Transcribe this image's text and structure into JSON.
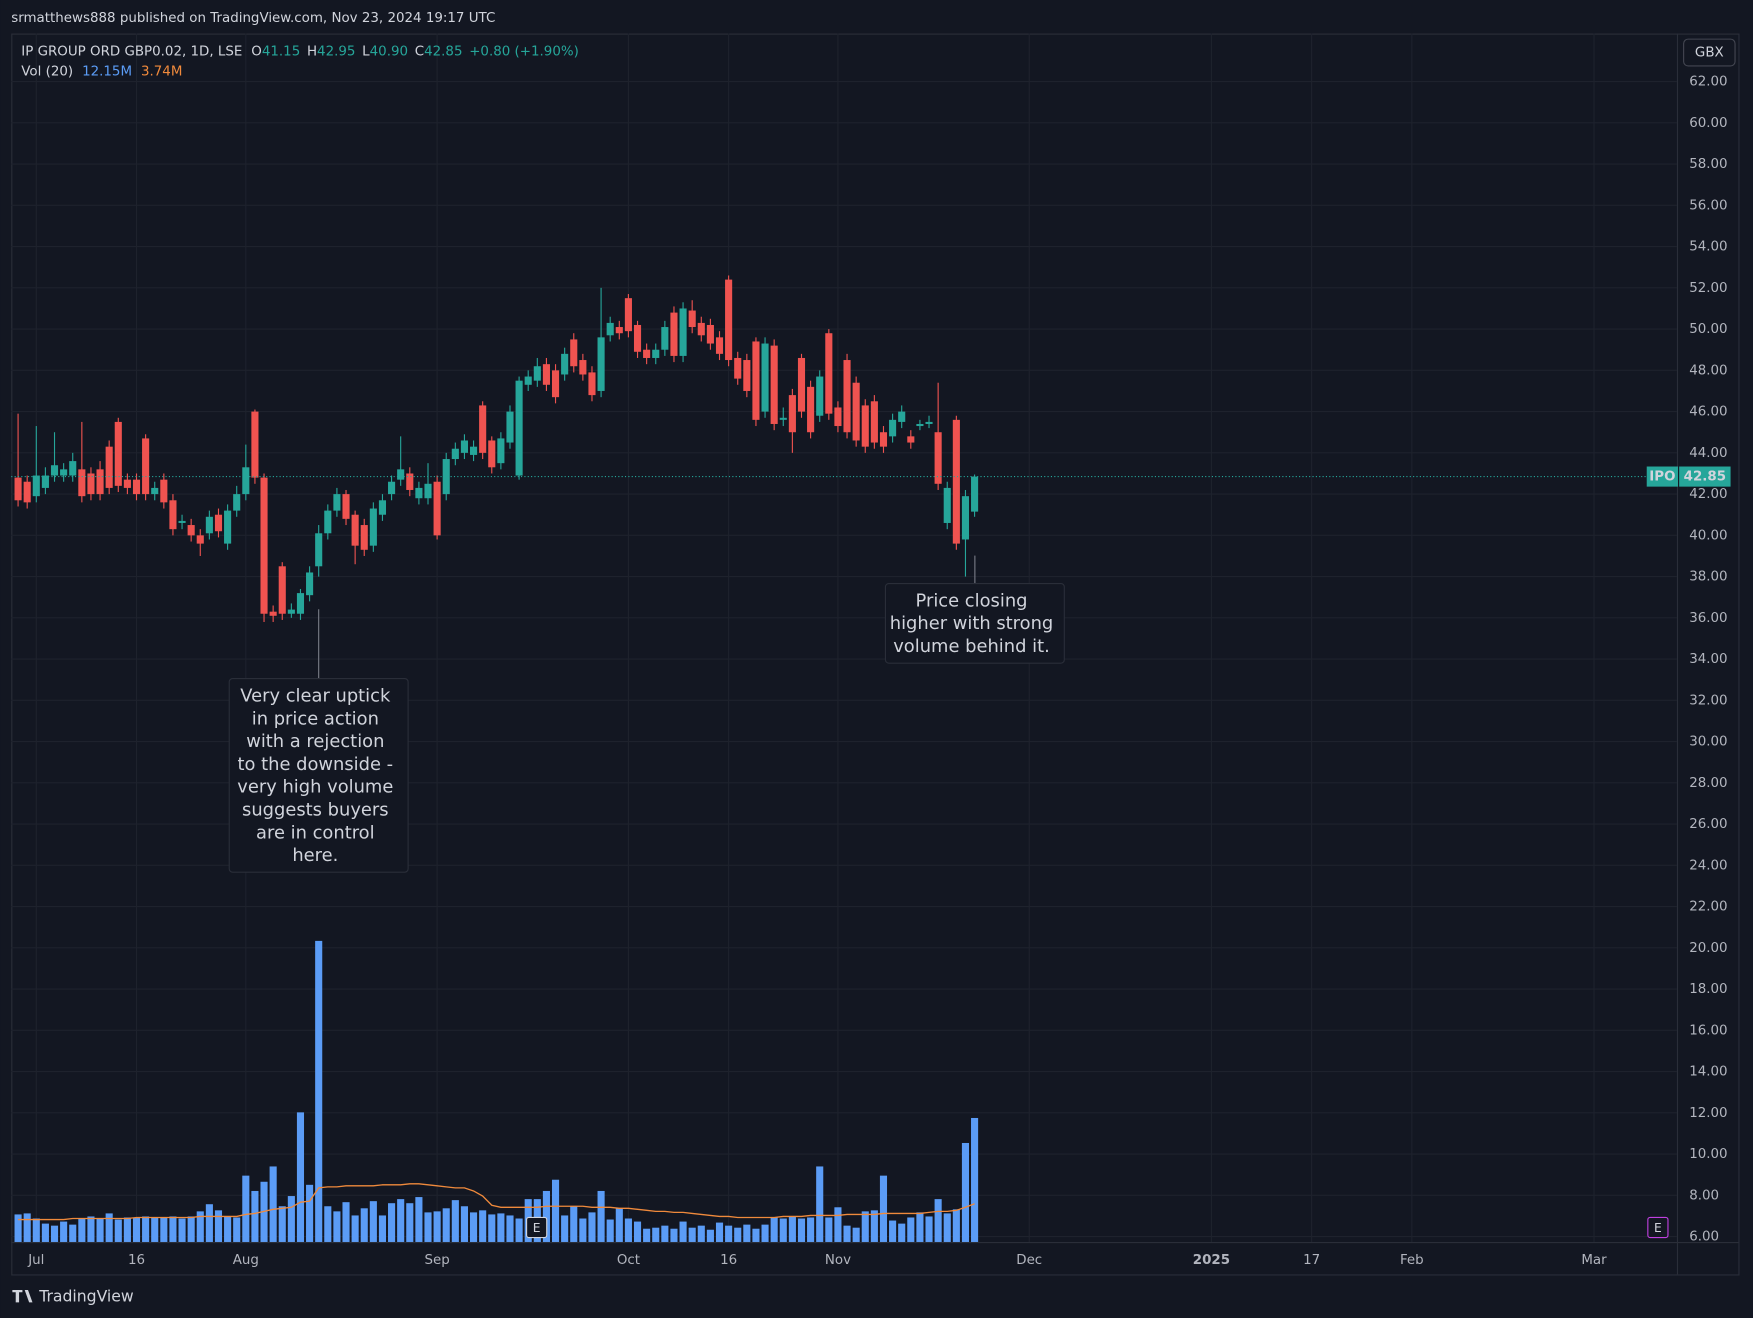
{
  "header": {
    "published": "srmatthews888 published on TradingView.com, Nov 23, 2024 19:17 UTC"
  },
  "chart_data": {
    "type": "candlestick",
    "title": "IP GROUP ORD GBP0.02, 1D, LSE",
    "legend": [
      {
        "key": "O",
        "value": "41.15"
      },
      {
        "key": "H",
        "value": "42.95"
      },
      {
        "key": "L",
        "value": "40.90"
      },
      {
        "key": "C",
        "value": "42.85"
      }
    ],
    "change": "+0.80 (+1.90%)",
    "x": [
      0,
      1,
      2,
      3,
      4,
      5,
      6,
      7,
      8,
      9,
      10,
      11,
      12,
      13,
      14,
      15,
      16,
      17,
      18,
      19,
      20,
      21,
      22,
      23,
      24,
      25,
      26,
      27,
      28,
      29,
      30,
      31,
      32,
      33,
      34,
      35,
      36,
      37,
      38,
      39,
      40,
      41,
      42,
      43,
      44,
      45,
      46,
      47,
      48,
      49,
      50,
      51,
      52,
      53,
      54,
      55,
      56,
      57,
      58,
      59,
      60,
      61,
      62,
      63,
      64,
      65,
      66,
      67,
      68,
      69,
      70,
      71,
      72,
      73,
      74,
      75,
      76,
      77,
      78,
      79,
      80,
      81,
      82,
      83,
      84,
      85,
      86,
      87,
      88,
      89,
      90,
      91,
      92,
      93,
      94,
      95,
      96,
      97,
      98,
      99,
      100,
      101,
      102,
      103,
      104,
      105
    ],
    "open": [
      42.8,
      42.6,
      41.9,
      42.3,
      42.9,
      42.9,
      42.9,
      43.2,
      43.0,
      43.2,
      44.3,
      45.5,
      42.7,
      42.7,
      44.7,
      42.0,
      42.7,
      41.7,
      40.6,
      40.5,
      40.0,
      40.1,
      41.0,
      39.6,
      41.2,
      42.0,
      46.0,
      42.8,
      36.3,
      38.5,
      36.2,
      36.2,
      37.1,
      38.5,
      40.1,
      41.2,
      42.0,
      41.0,
      40.5,
      39.5,
      41.0,
      42.0,
      42.7,
      43.0,
      41.8,
      41.8,
      42.6,
      42.0,
      43.7,
      44.0,
      43.9,
      46.3,
      44.6,
      43.5,
      44.5,
      42.9,
      47.3,
      47.5,
      48.3,
      48.0,
      47.8,
      49.5,
      48.5,
      47.9,
      47.0,
      49.7,
      50.1,
      51.5,
      50.2,
      49.0,
      48.6,
      49.0,
      50.8,
      48.7,
      50.9,
      50.3,
      50.2,
      49.6,
      52.4,
      48.6,
      48.5,
      49.4,
      46.0,
      49.2,
      45.6,
      46.8,
      48.6,
      47.2,
      45.8,
      49.8,
      46.2,
      48.5,
      47.4,
      46.3,
      46.5,
      45.0,
      44.8,
      45.5,
      44.8,
      45.3,
      45.4,
      45.0,
      40.6,
      45.6,
      39.8,
      41.15
    ],
    "high": [
      45.9,
      42.9,
      45.3,
      43.3,
      45.0,
      43.5,
      44.0,
      45.5,
      43.3,
      43.6,
      44.6,
      45.7,
      43.0,
      43.0,
      44.9,
      42.6,
      43.0,
      42.0,
      41.0,
      40.8,
      40.3,
      41.2,
      41.3,
      41.5,
      42.4,
      44.4,
      46.1,
      43.0,
      36.6,
      38.7,
      36.7,
      37.4,
      38.5,
      40.5,
      41.5,
      42.3,
      42.2,
      41.2,
      40.8,
      41.6,
      42.0,
      42.9,
      44.8,
      43.3,
      42.6,
      43.5,
      42.9,
      44.0,
      44.5,
      44.9,
      44.6,
      46.5,
      44.8,
      45.0,
      46.3,
      47.7,
      48.0,
      48.6,
      48.6,
      48.3,
      49.1,
      49.8,
      48.8,
      48.2,
      52.0,
      50.6,
      50.4,
      51.7,
      50.4,
      49.3,
      49.3,
      50.4,
      51.1,
      51.3,
      51.4,
      50.6,
      50.5,
      49.9,
      52.6,
      48.9,
      48.8,
      49.6,
      49.6,
      49.5,
      46.2,
      47.1,
      48.8,
      47.5,
      48.0,
      50.0,
      46.5,
      48.8,
      47.7,
      46.6,
      46.8,
      45.3,
      45.9,
      46.3,
      45.1,
      45.6,
      45.8,
      47.4,
      42.6,
      45.8,
      42.2,
      42.95
    ],
    "low": [
      41.4,
      41.3,
      41.6,
      42.0,
      42.6,
      42.6,
      42.6,
      41.6,
      41.7,
      41.7,
      42.0,
      42.1,
      42.0,
      41.7,
      41.7,
      41.7,
      41.3,
      40.0,
      40.3,
      39.7,
      39.0,
      39.8,
      39.9,
      39.3,
      40.9,
      41.7,
      42.5,
      35.8,
      35.8,
      35.9,
      36.0,
      35.9,
      36.8,
      38.0,
      39.8,
      40.9,
      40.5,
      38.6,
      39.0,
      39.2,
      40.7,
      41.7,
      42.4,
      41.9,
      41.5,
      41.5,
      39.8,
      41.7,
      43.4,
      43.7,
      43.6,
      43.7,
      43.0,
      43.2,
      44.2,
      42.7,
      47.0,
      47.2,
      47.0,
      46.4,
      47.5,
      47.9,
      47.5,
      46.5,
      46.7,
      49.4,
      49.5,
      49.6,
      48.6,
      48.3,
      48.3,
      48.7,
      48.4,
      48.4,
      49.8,
      49.4,
      49.0,
      48.5,
      48.2,
      47.3,
      46.7,
      45.3,
      45.7,
      45.1,
      45.3,
      44.0,
      45.7,
      44.7,
      45.5,
      45.6,
      45.0,
      44.7,
      44.3,
      44.0,
      44.2,
      44.0,
      44.5,
      45.2,
      44.2,
      45.1,
      45.2,
      42.2,
      40.3,
      39.3,
      38.0,
      40.9
    ],
    "close": [
      41.7,
      41.6,
      42.9,
      42.9,
      43.4,
      43.2,
      43.6,
      41.9,
      42.0,
      42.0,
      42.3,
      42.4,
      42.3,
      42.0,
      42.0,
      42.3,
      41.6,
      40.3,
      40.7,
      40.0,
      39.6,
      40.9,
      40.2,
      41.2,
      42.0,
      43.3,
      42.8,
      36.2,
      36.1,
      36.2,
      36.4,
      37.2,
      38.2,
      40.1,
      41.2,
      42.0,
      40.8,
      39.5,
      39.3,
      41.3,
      41.7,
      42.6,
      43.2,
      42.2,
      42.3,
      42.5,
      40.0,
      43.7,
      44.2,
      44.6,
      44.3,
      44.0,
      43.3,
      44.7,
      46.0,
      47.5,
      47.7,
      48.2,
      47.3,
      46.7,
      48.8,
      48.2,
      47.8,
      46.8,
      49.6,
      50.3,
      49.8,
      49.9,
      48.9,
      48.6,
      49.0,
      50.1,
      48.7,
      51.0,
      50.1,
      49.7,
      49.3,
      48.8,
      48.5,
      47.6,
      47.0,
      45.6,
      49.3,
      45.4,
      45.7,
      45.0,
      46.0,
      45.0,
      47.7,
      45.9,
      45.3,
      45.0,
      44.6,
      44.3,
      44.5,
      44.3,
      45.6,
      46.0,
      44.5,
      45.4,
      45.5,
      42.5,
      42.3,
      39.6,
      41.9,
      42.85
    ],
    "up_color": "#26a69a",
    "down_color": "#ef5350",
    "xlim": [
      -0.75,
      182.1
    ],
    "xticks": [
      {
        "value": 2,
        "label": "Jul"
      },
      {
        "value": 13,
        "label": "16"
      },
      {
        "value": 25,
        "label": "Aug"
      },
      {
        "value": 46,
        "label": "Sep"
      },
      {
        "value": 67,
        "label": "Oct"
      },
      {
        "value": 78,
        "label": "16"
      },
      {
        "value": 90,
        "label": "Nov"
      },
      {
        "value": 111,
        "label": "Dec"
      },
      {
        "value": 131,
        "label": "2025"
      },
      {
        "value": 142,
        "label": "17"
      },
      {
        "value": 153,
        "label": "Feb"
      },
      {
        "value": 173,
        "label": "Mar"
      }
    ],
    "ylim": [
      5.74,
      64.33
    ],
    "yticks": [
      {
        "value": 6,
        "label": "6.00"
      },
      {
        "value": 8,
        "label": "8.00"
      },
      {
        "value": 10,
        "label": "10.00"
      },
      {
        "value": 12,
        "label": "12.00"
      },
      {
        "value": 14,
        "label": "14.00"
      },
      {
        "value": 16,
        "label": "16.00"
      },
      {
        "value": 18,
        "label": "18.00"
      },
      {
        "value": 20,
        "label": "20.00"
      },
      {
        "value": 22,
        "label": "22.00"
      },
      {
        "value": 24,
        "label": "24.00"
      },
      {
        "value": 26,
        "label": "26.00"
      },
      {
        "value": 28,
        "label": "28.00"
      },
      {
        "value": 30,
        "label": "30.00"
      },
      {
        "value": 32,
        "label": "32.00"
      },
      {
        "value": 34,
        "label": "34.00"
      },
      {
        "value": 36,
        "label": "36.00"
      },
      {
        "value": 38,
        "label": "38.00"
      },
      {
        "value": 40,
        "label": "40.00"
      },
      {
        "value": 42,
        "label": "42.00"
      },
      {
        "value": 44,
        "label": "44.00"
      },
      {
        "value": 46,
        "label": "46.00"
      },
      {
        "value": 48,
        "label": "48.00"
      },
      {
        "value": 50,
        "label": "50.00"
      },
      {
        "value": 52,
        "label": "52.00"
      },
      {
        "value": 54,
        "label": "54.00"
      },
      {
        "value": 56,
        "label": "56.00"
      },
      {
        "value": 58,
        "label": "58.00"
      },
      {
        "value": 60,
        "label": "60.00"
      },
      {
        "value": 62,
        "label": "62.00"
      }
    ],
    "y_unit": "GBX",
    "y2lim": [
      0,
      118.4
    ],
    "grid": true,
    "series": [
      {
        "name": "Vol (20)",
        "type": "bar",
        "axis": "y2",
        "color": "#5b9cf6",
        "last_label": "12.15M",
        "values": [
          2.7,
          2.8,
          2.3,
          1.8,
          1.6,
          2.0,
          1.7,
          2.3,
          2.5,
          2.3,
          2.8,
          2.2,
          2.4,
          2.4,
          2.5,
          2.4,
          2.4,
          2.5,
          2.3,
          2.5,
          3.0,
          3.7,
          3.1,
          2.5,
          2.4,
          6.5,
          5.0,
          5.9,
          7.4,
          3.5,
          4.5,
          12.7,
          5.6,
          29.5,
          3.5,
          3.0,
          3.9,
          2.6,
          3.3,
          4.0,
          2.6,
          3.8,
          4.2,
          3.8,
          4.4,
          2.9,
          3.0,
          3.3,
          4.1,
          3.5,
          2.9,
          3.1,
          2.7,
          2.8,
          2.6,
          2.3,
          4.2,
          4.2,
          5.0,
          6.1,
          2.6,
          3.5,
          2.3,
          2.9,
          5.0,
          2.2,
          3.3,
          2.3,
          2.0,
          1.3,
          1.4,
          1.6,
          1.3,
          2.0,
          1.4,
          1.6,
          1.2,
          1.9,
          1.6,
          1.4,
          1.7,
          1.3,
          1.7,
          2.4,
          2.3,
          2.5,
          2.3,
          2.4,
          7.4,
          2.4,
          3.4,
          1.6,
          1.4,
          3.0,
          3.1,
          6.5,
          2.1,
          1.8,
          2.4,
          2.9,
          2.5,
          4.2,
          2.8,
          3.2,
          9.7,
          12.15
        ]
      },
      {
        "type": "line",
        "axis": "y2",
        "color": "#f08a3c",
        "last_label": "3.74M",
        "values": [
          2.2,
          2.2,
          2.2,
          2.2,
          2.2,
          2.2,
          2.3,
          2.3,
          2.3,
          2.3,
          2.3,
          2.3,
          2.3,
          2.4,
          2.4,
          2.4,
          2.4,
          2.4,
          2.4,
          2.4,
          2.5,
          2.5,
          2.5,
          2.5,
          2.5,
          2.7,
          2.8,
          3.0,
          3.2,
          3.3,
          3.4,
          3.9,
          4.0,
          5.3,
          5.4,
          5.4,
          5.5,
          5.5,
          5.5,
          5.5,
          5.6,
          5.6,
          5.6,
          5.7,
          5.7,
          5.6,
          5.5,
          5.4,
          5.3,
          5.3,
          5.0,
          4.5,
          3.6,
          3.4,
          3.4,
          3.4,
          3.4,
          3.4,
          3.5,
          3.5,
          3.5,
          3.5,
          3.5,
          3.4,
          3.4,
          3.4,
          3.3,
          3.3,
          3.2,
          3.1,
          3.0,
          3.0,
          2.9,
          2.9,
          2.8,
          2.7,
          2.6,
          2.5,
          2.5,
          2.4,
          2.4,
          2.4,
          2.4,
          2.4,
          2.5,
          2.5,
          2.5,
          2.6,
          2.6,
          2.6,
          2.6,
          2.7,
          2.7,
          2.7,
          2.7,
          2.8,
          2.8,
          2.8,
          2.8,
          2.8,
          2.9,
          3.0,
          3.0,
          3.1,
          3.4,
          3.74
        ]
      }
    ],
    "last_price": {
      "symbol": "IPO",
      "label": "42.85"
    },
    "events": [
      {
        "label": "E"
      },
      {
        "label": "E"
      }
    ],
    "annotations": [
      {
        "lines": [
          "Very clear uptick",
          "in price action",
          "with a rejection",
          "to the downside -",
          "very high volume",
          "suggests buyers",
          "are in control",
          "here."
        ]
      },
      {
        "lines": [
          "Price closing",
          "higher with strong",
          "volume behind it."
        ]
      }
    ]
  },
  "footer": {
    "brand": "TradingView"
  }
}
